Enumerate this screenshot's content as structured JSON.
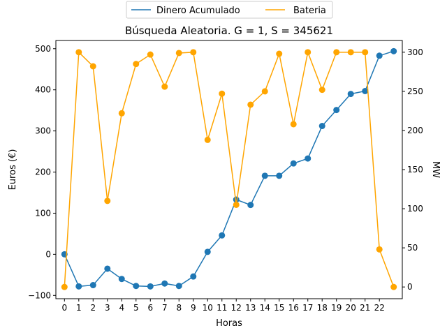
{
  "chart_data": {
    "type": "line",
    "title": "Búsqueda Aleatoria. G = 1, S = 345621",
    "xlabel": "Horas",
    "ylabel": "Euros (€)",
    "ylabel_right": "MW",
    "x_ticks": [
      "0",
      "1",
      "2",
      "3",
      "4",
      "5",
      "6",
      "7",
      "8",
      "9",
      "10",
      "11",
      "12",
      "13",
      "14",
      "15",
      "16",
      "17",
      "18",
      "19",
      "20",
      "21",
      "22"
    ],
    "xlim": [
      -0.6,
      23.6
    ],
    "ylim_left": [
      -108,
      520
    ],
    "ylim_right": [
      -15,
      315
    ],
    "yticks_left": [
      -100,
      0,
      100,
      200,
      300,
      400,
      500
    ],
    "yticks_right": [
      0,
      50,
      100,
      150,
      200,
      250,
      300
    ],
    "grid": false,
    "legend_position": "top-center-outside",
    "series": [
      {
        "name": "Dinero Acumulado",
        "axis": "left",
        "color": "#1f77b4",
        "x": [
          0,
          1,
          2,
          3,
          4,
          5,
          6,
          7,
          8,
          9,
          10,
          11,
          12,
          13,
          14,
          15,
          16,
          17,
          18,
          19,
          20,
          21,
          22,
          23
        ],
        "values": [
          0,
          -78,
          -75,
          -35,
          -60,
          -77,
          -78,
          -71,
          -77,
          -54,
          6,
          46,
          133,
          120,
          191,
          191,
          221,
          233,
          312,
          351,
          390,
          397,
          483,
          494
        ]
      },
      {
        "name": "Bateria",
        "axis": "right",
        "color": "#ffa500",
        "x": [
          0,
          1,
          2,
          3,
          4,
          5,
          6,
          7,
          8,
          9,
          10,
          11,
          12,
          13,
          14,
          15,
          16,
          17,
          18,
          19,
          20,
          21,
          22,
          23
        ],
        "values": [
          0,
          300,
          282,
          110,
          222,
          285,
          297,
          256,
          299,
          300,
          188,
          247,
          105,
          233,
          250,
          298,
          208,
          300,
          252,
          300,
          300,
          300,
          48,
          0
        ]
      }
    ]
  }
}
